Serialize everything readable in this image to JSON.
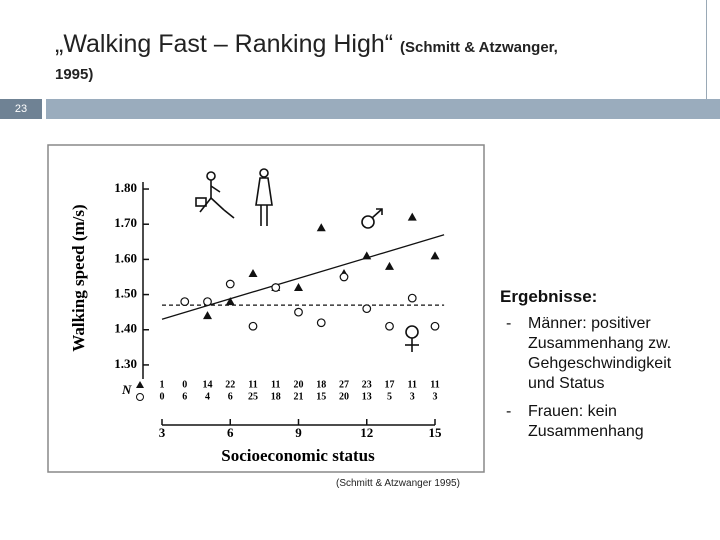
{
  "slide": {
    "title_main": "„Walking Fast – Ranking High“",
    "title_ref": "(Schmitt & Atzwanger,",
    "title_ref_cont": "1995)",
    "page_number": "23",
    "heading": "Ergebnisse:",
    "bullets": [
      {
        "marker": "-",
        "lines": [
          "Männer: positiver",
          "Zusammenhang zw.",
          "Gehgeschwindigkeit",
          "und Status"
        ]
      },
      {
        "marker": "-",
        "lines": [
          "Frauen: kein",
          "Zusammenhang"
        ]
      }
    ],
    "caption": "(Schmitt & Atzwanger 1995)"
  },
  "chart_data": {
    "type": "scatter",
    "xlabel": "Socioeconomic status",
    "ylabel": "Walking speed (m/s)",
    "xlim": [
      3,
      15
    ],
    "xticks": [
      3,
      6,
      9,
      12,
      15
    ],
    "ylim": [
      1.26,
      1.82
    ],
    "yticks": [
      {
        "value": 1.3,
        "label": "1.30"
      },
      {
        "value": 1.4,
        "label": "1.40"
      },
      {
        "value": 1.5,
        "label": "1.50"
      },
      {
        "value": 1.6,
        "label": "1.60"
      },
      {
        "value": 1.7,
        "label": "1.70"
      },
      {
        "value": 1.8,
        "label": "1.80"
      }
    ],
    "series": [
      {
        "marker": "triangle",
        "color": "#111111",
        "x": [
          5,
          6,
          7,
          8,
          9,
          10,
          11,
          12,
          13,
          14,
          15
        ],
        "values": [
          1.44,
          1.48,
          1.56,
          1.52,
          1.52,
          1.69,
          1.56,
          1.61,
          1.58,
          1.72,
          1.61
        ]
      },
      {
        "marker": "circle",
        "color": "#111111",
        "x": [
          4,
          5,
          6,
          7,
          8,
          9,
          10,
          11,
          12,
          13,
          14,
          15
        ],
        "values": [
          1.48,
          1.48,
          1.53,
          1.41,
          1.52,
          1.45,
          1.42,
          1.55,
          1.46,
          1.41,
          1.49,
          1.41
        ]
      }
    ],
    "fit_lines": [
      {
        "style": "solid",
        "x": [
          3,
          15.4
        ],
        "values": [
          1.43,
          1.67
        ]
      },
      {
        "style": "dashed",
        "x": [
          3,
          15.4
        ],
        "values": [
          1.47,
          1.47
        ]
      }
    ],
    "n_counts": {
      "label": "N",
      "x": [
        3,
        4,
        5,
        6,
        7,
        8,
        9,
        10,
        11,
        12,
        13,
        14,
        15
      ],
      "male": [
        1,
        0,
        14,
        22,
        11,
        11,
        20,
        18,
        27,
        23,
        17,
        11,
        11
      ],
      "female": [
        0,
        6,
        4,
        6,
        25,
        18,
        21,
        15,
        20,
        13,
        5,
        3,
        3
      ]
    }
  }
}
